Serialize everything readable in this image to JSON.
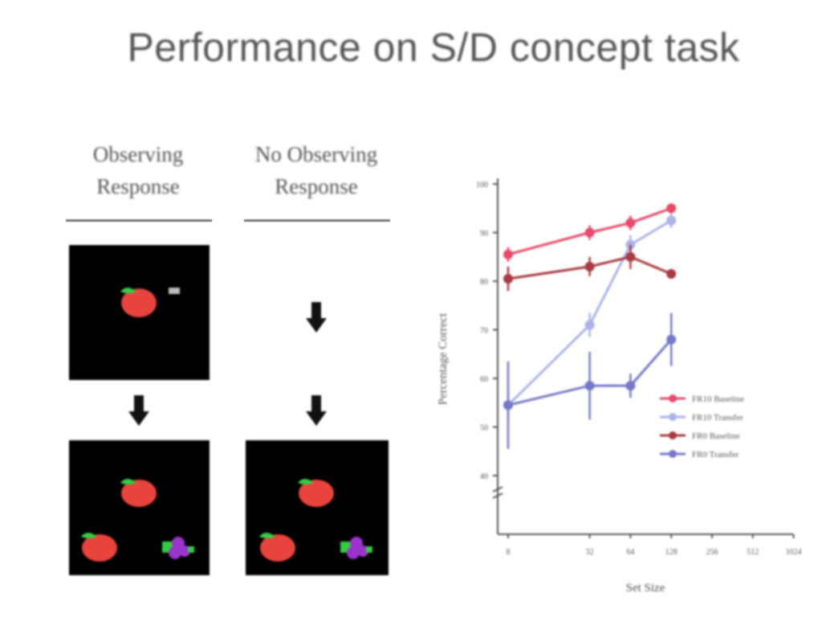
{
  "slide": {
    "title": "Performance on S/D concept task"
  },
  "columns": {
    "left_heading": "Observing Response",
    "right_heading": "No Observing Response"
  },
  "colors": {
    "panel_bg": "#000000",
    "apple_red": "#e8433d",
    "leaf_green": "#33cc44",
    "grape_purple": "#9b33cc",
    "arrow": "#111111"
  },
  "chart_data": {
    "type": "line",
    "title": "",
    "xlabel": "Set Size",
    "ylabel": "Percentage Correct",
    "x_scale": "log2",
    "x_ticks": [
      "8",
      "32",
      "64",
      "128",
      "256",
      "512",
      "1024"
    ],
    "y_ticks": [
      "40",
      "50",
      "60",
      "70",
      "80",
      "90",
      "100"
    ],
    "ylim": [
      40,
      100
    ],
    "grid": false,
    "legend_position": "right",
    "series": [
      {
        "name": "FR10 Baseline",
        "color": "#e8486a",
        "marker": "circle",
        "x": [
          8,
          32,
          64,
          128
        ],
        "y": [
          85.5,
          90,
          92,
          95
        ],
        "err": [
          1.5,
          1.5,
          1.5,
          1
        ]
      },
      {
        "name": "FR10 Transfer",
        "color": "#aab2e8",
        "marker": "circle",
        "x": [
          8,
          32,
          64,
          128
        ],
        "y": [
          54.5,
          71,
          87.5,
          92.5
        ],
        "err": [
          3,
          2.5,
          2,
          1.5
        ]
      },
      {
        "name": "FR0 Baseline",
        "color": "#a83a40",
        "marker": "circle",
        "x": [
          8,
          32,
          64,
          128
        ],
        "y": [
          80.5,
          83,
          85,
          81.5
        ],
        "err": [
          2.5,
          2,
          2.5,
          1
        ]
      },
      {
        "name": "FR0 Transfer",
        "color": "#7478c8",
        "marker": "circle",
        "x": [
          8,
          32,
          64,
          128
        ],
        "y": [
          54.5,
          58.5,
          58.5,
          68
        ],
        "err": [
          9,
          7,
          2.5,
          5.5
        ]
      }
    ]
  }
}
